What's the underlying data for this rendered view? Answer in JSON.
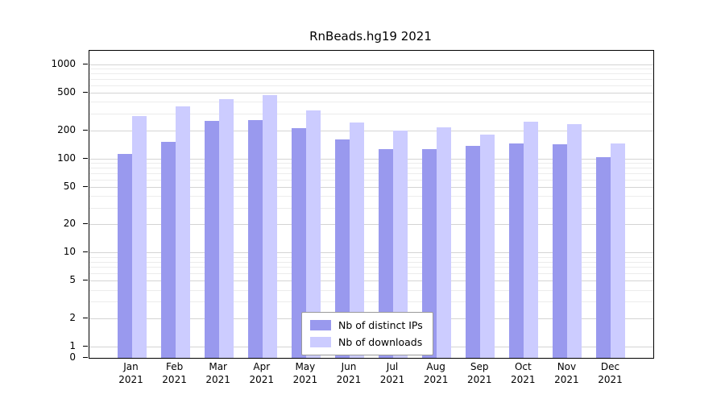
{
  "chart_data": {
    "type": "bar",
    "title": "RnBeads.hg19 2021",
    "categories": [
      "Jan 2021",
      "Feb 2021",
      "Mar 2021",
      "Apr 2021",
      "May 2021",
      "Jun 2021",
      "Jul 2021",
      "Aug 2021",
      "Sep 2021",
      "Oct 2021",
      "Nov 2021",
      "Dec 2021"
    ],
    "series": [
      {
        "name": "Nb of distinct IPs",
        "color": "#9999ee",
        "values": [
          112,
          150,
          250,
          255,
          210,
          160,
          125,
          125,
          135,
          145,
          142,
          104
        ]
      },
      {
        "name": "Nb of downloads",
        "color": "#ccccff",
        "values": [
          285,
          355,
          430,
          475,
          325,
          240,
          200,
          215,
          180,
          245,
          230,
          145
        ]
      }
    ],
    "yscale": "log",
    "yticks": [
      0,
      1,
      2,
      5,
      10,
      20,
      50,
      100,
      200,
      500,
      1000
    ],
    "ylim": [
      0,
      1000
    ],
    "grid": true,
    "legend_position": "bottom-center"
  },
  "colors": {
    "distinct_ips": "#9999ee",
    "downloads": "#ccccff",
    "grid_major": "#d4d4d4",
    "grid_minor": "#ececec",
    "axis": "#000000"
  }
}
